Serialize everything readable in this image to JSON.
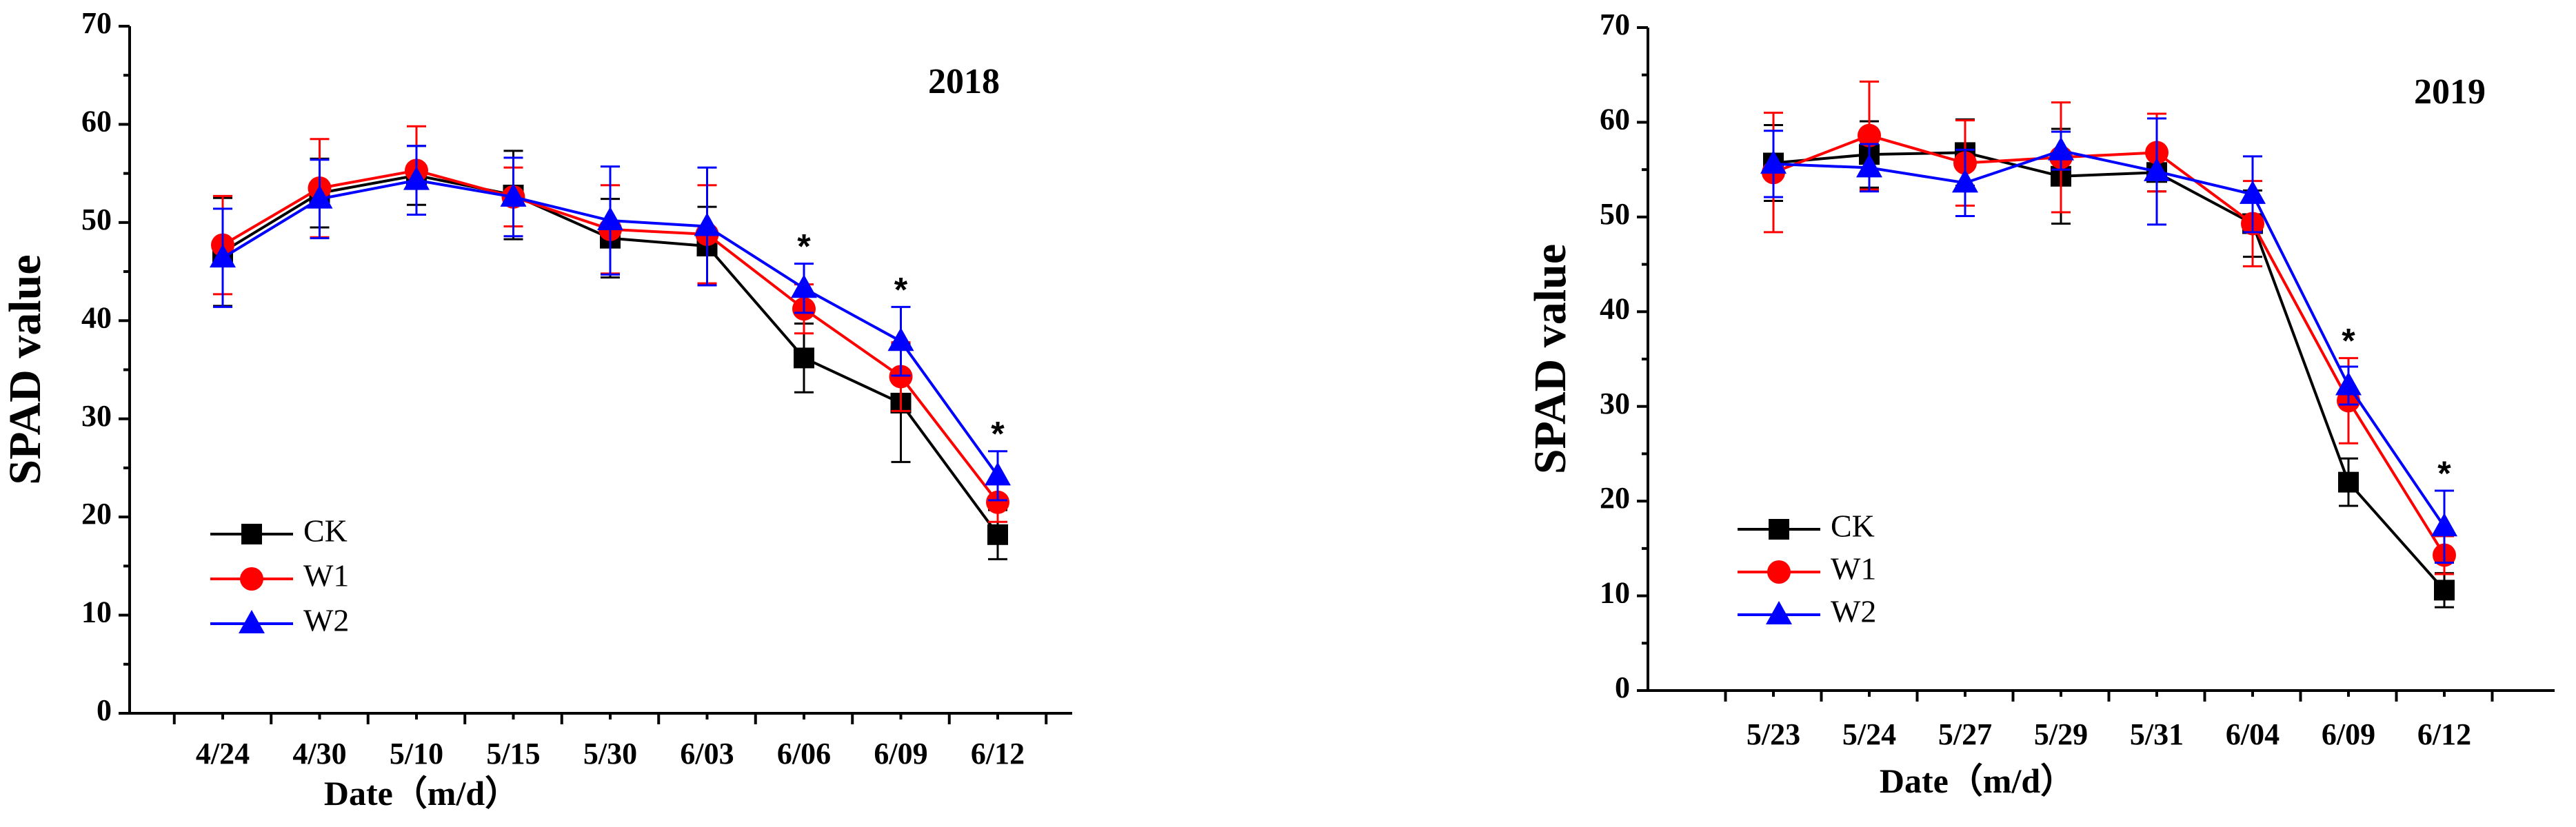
{
  "chart_data": [
    {
      "type": "line",
      "title": "2018",
      "xlabel": "Date（m/d）",
      "ylabel": "SPAD value",
      "ylim": [
        0,
        70
      ],
      "yticks": [
        0,
        10,
        20,
        30,
        40,
        50,
        60,
        70
      ],
      "grid": false,
      "legend": "bottom-left",
      "categories": [
        "4/24",
        "4/30",
        "5/10",
        "5/15",
        "5/30",
        "6/03",
        "6/06",
        "6/09",
        "6/12"
      ],
      "series": [
        {
          "name": "CK",
          "color": "#000000",
          "marker": "square",
          "values": [
            47.0,
            53.0,
            54.8,
            52.8,
            48.4,
            47.6,
            36.2,
            31.6,
            18.2
          ],
          "errors": [
            5.5,
            3.5,
            3.0,
            4.5,
            4.0,
            4.0,
            3.5,
            6.0,
            2.5
          ]
        },
        {
          "name": "W1",
          "color": "#ff0000",
          "marker": "circle",
          "values": [
            47.7,
            53.5,
            55.3,
            52.6,
            49.3,
            48.8,
            41.2,
            34.3,
            21.5
          ],
          "errors": [
            5.0,
            5.0,
            4.5,
            3.0,
            4.5,
            5.0,
            2.5,
            3.5,
            2.0
          ]
        },
        {
          "name": "W2",
          "color": "#0000ff",
          "marker": "triangle",
          "values": [
            46.4,
            52.4,
            54.3,
            52.6,
            50.2,
            49.6,
            43.3,
            37.9,
            24.2
          ],
          "errors": [
            5.0,
            4.0,
            3.5,
            4.0,
            5.5,
            6.0,
            2.5,
            3.5,
            2.5
          ]
        }
      ],
      "annotations": [
        {
          "category": "6/06",
          "text": "*"
        },
        {
          "category": "6/09",
          "text": "*"
        },
        {
          "category": "6/12",
          "text": "*"
        }
      ]
    },
    {
      "type": "line",
      "title": "2019",
      "xlabel": "Date（m/d）",
      "ylabel": "SPAD value",
      "ylim": [
        0,
        70
      ],
      "yticks": [
        0,
        10,
        20,
        30,
        40,
        50,
        60,
        70
      ],
      "grid": false,
      "legend": "bottom-left",
      "categories": [
        "5/23",
        "5/24",
        "5/27",
        "5/29",
        "5/31",
        "6/04",
        "6/09",
        "6/12"
      ],
      "series": [
        {
          "name": "CK",
          "color": "#000000",
          "marker": "square",
          "values": [
            55.7,
            56.6,
            56.8,
            54.3,
            54.7,
            49.3,
            22.0,
            10.6
          ],
          "errors": [
            4.0,
            3.5,
            3.5,
            5.0,
            2.0,
            3.5,
            2.5,
            1.8
          ]
        },
        {
          "name": "W1",
          "color": "#ff0000",
          "marker": "circle",
          "values": [
            54.7,
            58.6,
            55.7,
            56.3,
            56.8,
            49.3,
            30.6,
            14.3
          ],
          "errors": [
            6.3,
            5.7,
            4.5,
            5.8,
            4.1,
            4.5,
            4.5,
            2.0
          ]
        },
        {
          "name": "W2",
          "color": "#0000ff",
          "marker": "triangle",
          "values": [
            55.6,
            55.2,
            53.6,
            57.0,
            54.8,
            52.4,
            32.2,
            17.3
          ],
          "errors": [
            3.5,
            2.5,
            3.5,
            2.0,
            5.6,
            4.0,
            2.0,
            3.8
          ]
        }
      ],
      "annotations": [
        {
          "category": "6/09",
          "text": "*"
        },
        {
          "category": "6/12",
          "text": "*"
        }
      ]
    }
  ]
}
